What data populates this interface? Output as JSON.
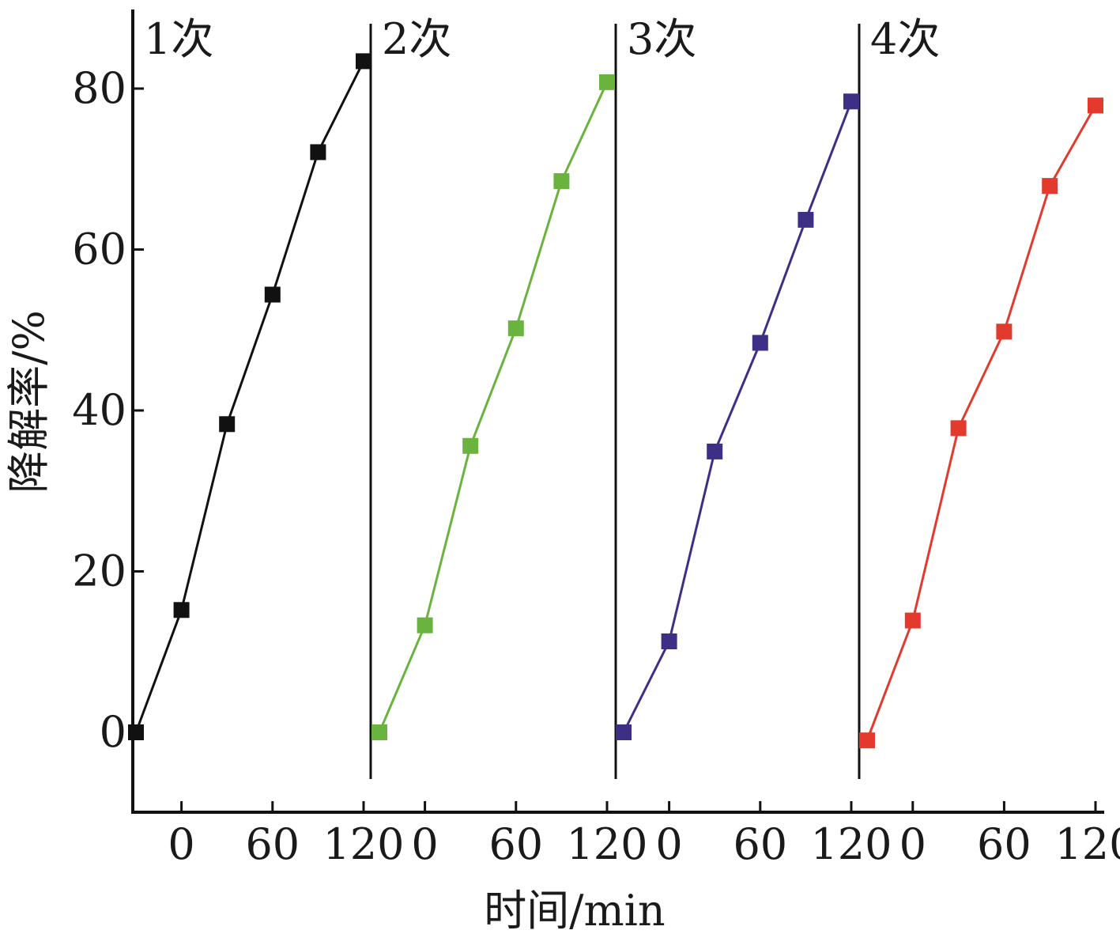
{
  "chart_data": {
    "type": "line",
    "title": "",
    "xlabel": "时间/min",
    "ylabel": "降解率/%",
    "ylim": [
      -10,
      90
    ],
    "y_ticks": [
      0,
      20,
      40,
      60,
      80
    ],
    "x_tick_labels": [
      "0",
      "60",
      "120"
    ],
    "grid": false,
    "legend": "none",
    "x": [
      -30,
      0,
      30,
      60,
      90,
      120
    ],
    "series": [
      {
        "name": "1次",
        "color": "#111111",
        "values": [
          0,
          15.2,
          38.3,
          54.4,
          72.1,
          83.4
        ]
      },
      {
        "name": "2次",
        "color": "#6ab33e",
        "values": [
          0,
          13.3,
          35.6,
          50.2,
          68.5,
          80.8
        ]
      },
      {
        "name": "3次",
        "color": "#3d2f86",
        "values": [
          0,
          11.3,
          34.9,
          48.4,
          63.7,
          78.4
        ]
      },
      {
        "name": "4次",
        "color": "#e33a2e",
        "values": [
          -1.0,
          13.9,
          37.8,
          49.8,
          67.9,
          77.9
        ]
      }
    ]
  }
}
